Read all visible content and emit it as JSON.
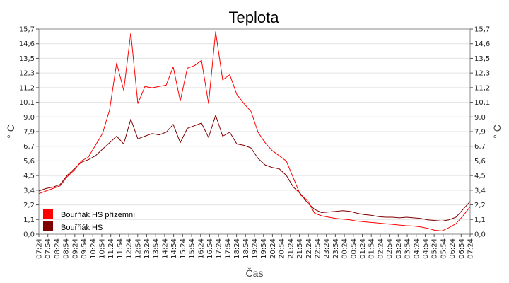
{
  "chart_data": {
    "type": "line",
    "title": "Teplota",
    "xlabel": "Čas",
    "ylabel_left": "° C",
    "ylabel_right": "° C",
    "ylim": [
      0,
      15.7
    ],
    "yticks": [
      "0,0",
      "1,1",
      "2,2",
      "3,4",
      "4,5",
      "5,6",
      "6,7",
      "7,9",
      "9,0",
      "10,1",
      "11,2",
      "12,3",
      "13,5",
      "14,6",
      "15,7"
    ],
    "xticks": [
      "07:24",
      "07:54",
      "08:24",
      "08:54",
      "09:24",
      "09:54",
      "10:24",
      "10:54",
      "11:24",
      "11:54",
      "12:24",
      "12:54",
      "13:24",
      "13:54",
      "14:24",
      "14:54",
      "15:24",
      "15:54",
      "16:24",
      "16:54",
      "17:24",
      "17:54",
      "18:24",
      "18:54",
      "19:24",
      "19:54",
      "20:24",
      "20:54",
      "21:24",
      "21:54",
      "22:24",
      "22:54",
      "23:24",
      "23:54",
      "00:24",
      "00:54",
      "01:24",
      "01:54",
      "02:24",
      "02:54",
      "03:24",
      "03:54",
      "04:24",
      "04:54",
      "05:24",
      "05:54",
      "06:24",
      "06:54",
      "07:24"
    ],
    "grid": true,
    "legend_position": "bottom-left",
    "series": [
      {
        "name": "Bouřňák HS přízemní",
        "color": "#ff0000",
        "values": [
          3.1,
          3.3,
          3.5,
          3.7,
          4.4,
          4.9,
          5.6,
          5.9,
          6.8,
          7.7,
          9.5,
          13.1,
          11.0,
          15.4,
          10.0,
          11.3,
          11.2,
          11.3,
          11.4,
          12.8,
          10.2,
          12.7,
          12.9,
          13.3,
          10.0,
          15.5,
          11.8,
          12.2,
          10.7,
          10.0,
          9.4,
          7.8,
          7.0,
          6.4,
          6.0,
          5.6,
          4.3,
          3.0,
          2.6,
          1.6,
          1.4,
          1.3,
          1.2,
          1.15,
          1.1,
          1.0,
          0.95,
          0.9,
          0.85,
          0.8,
          0.75,
          0.7,
          0.65,
          0.62,
          0.55,
          0.45,
          0.3,
          0.25,
          0.5,
          0.8,
          1.4,
          2.1
        ]
      },
      {
        "name": "Bouřňák HS",
        "color": "#800000",
        "values": [
          3.3,
          3.5,
          3.6,
          3.8,
          4.5,
          5.0,
          5.5,
          5.7,
          6.0,
          6.5,
          7.0,
          7.5,
          6.9,
          8.8,
          7.3,
          7.5,
          7.7,
          7.6,
          7.8,
          8.4,
          7.0,
          8.1,
          8.3,
          8.5,
          7.4,
          9.1,
          7.5,
          7.8,
          6.9,
          6.8,
          6.6,
          5.8,
          5.3,
          5.1,
          5.0,
          4.5,
          3.6,
          3.1,
          2.4,
          1.9,
          1.65,
          1.7,
          1.75,
          1.8,
          1.75,
          1.6,
          1.5,
          1.45,
          1.35,
          1.3,
          1.3,
          1.25,
          1.3,
          1.25,
          1.2,
          1.1,
          1.05,
          1.0,
          1.1,
          1.3,
          1.9,
          2.5
        ]
      }
    ]
  }
}
